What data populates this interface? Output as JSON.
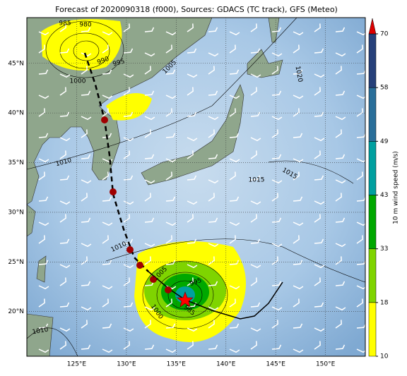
{
  "title": "Forecast of 2020090318 (f000), Sources: GDACS (TC track), GFS (Meteo)",
  "map": {
    "lonlim": [
      120,
      154
    ],
    "latlim": [
      15.5,
      49.6
    ],
    "lon_ticks": [
      {
        "value": 125,
        "label": "125°E"
      },
      {
        "value": 130,
        "label": "130°E"
      },
      {
        "value": 135,
        "label": "135°E"
      },
      {
        "value": 140,
        "label": "140°E"
      },
      {
        "value": 145,
        "label": "145°E"
      },
      {
        "value": 150,
        "label": "150°E"
      }
    ],
    "lat_ticks": [
      {
        "value": 20,
        "label": "20°N"
      },
      {
        "value": 25,
        "label": "25°N"
      },
      {
        "value": 30,
        "label": "30°N"
      },
      {
        "value": 35,
        "label": "35°N"
      },
      {
        "value": 40,
        "label": "40°N"
      },
      {
        "value": 45,
        "label": "45°N"
      }
    ],
    "grid": true
  },
  "colorbar": {
    "label": "10 m wind speed (m/s)",
    "ticks": [
      10,
      18,
      33,
      43,
      49,
      58,
      70
    ],
    "colors": [
      "#ffff00",
      "#7fd400",
      "#00a800",
      "#00a0a0",
      "#2a6f9a",
      "#26407a"
    ],
    "extend_color": "#dd0000"
  },
  "isobar_labels": [
    "985",
    "980",
    "990",
    "995",
    "1000",
    "1005",
    "1020",
    "1010",
    "1015",
    "1015",
    "1010",
    "1005",
    "995",
    "1000",
    "985",
    "1010"
  ]
}
